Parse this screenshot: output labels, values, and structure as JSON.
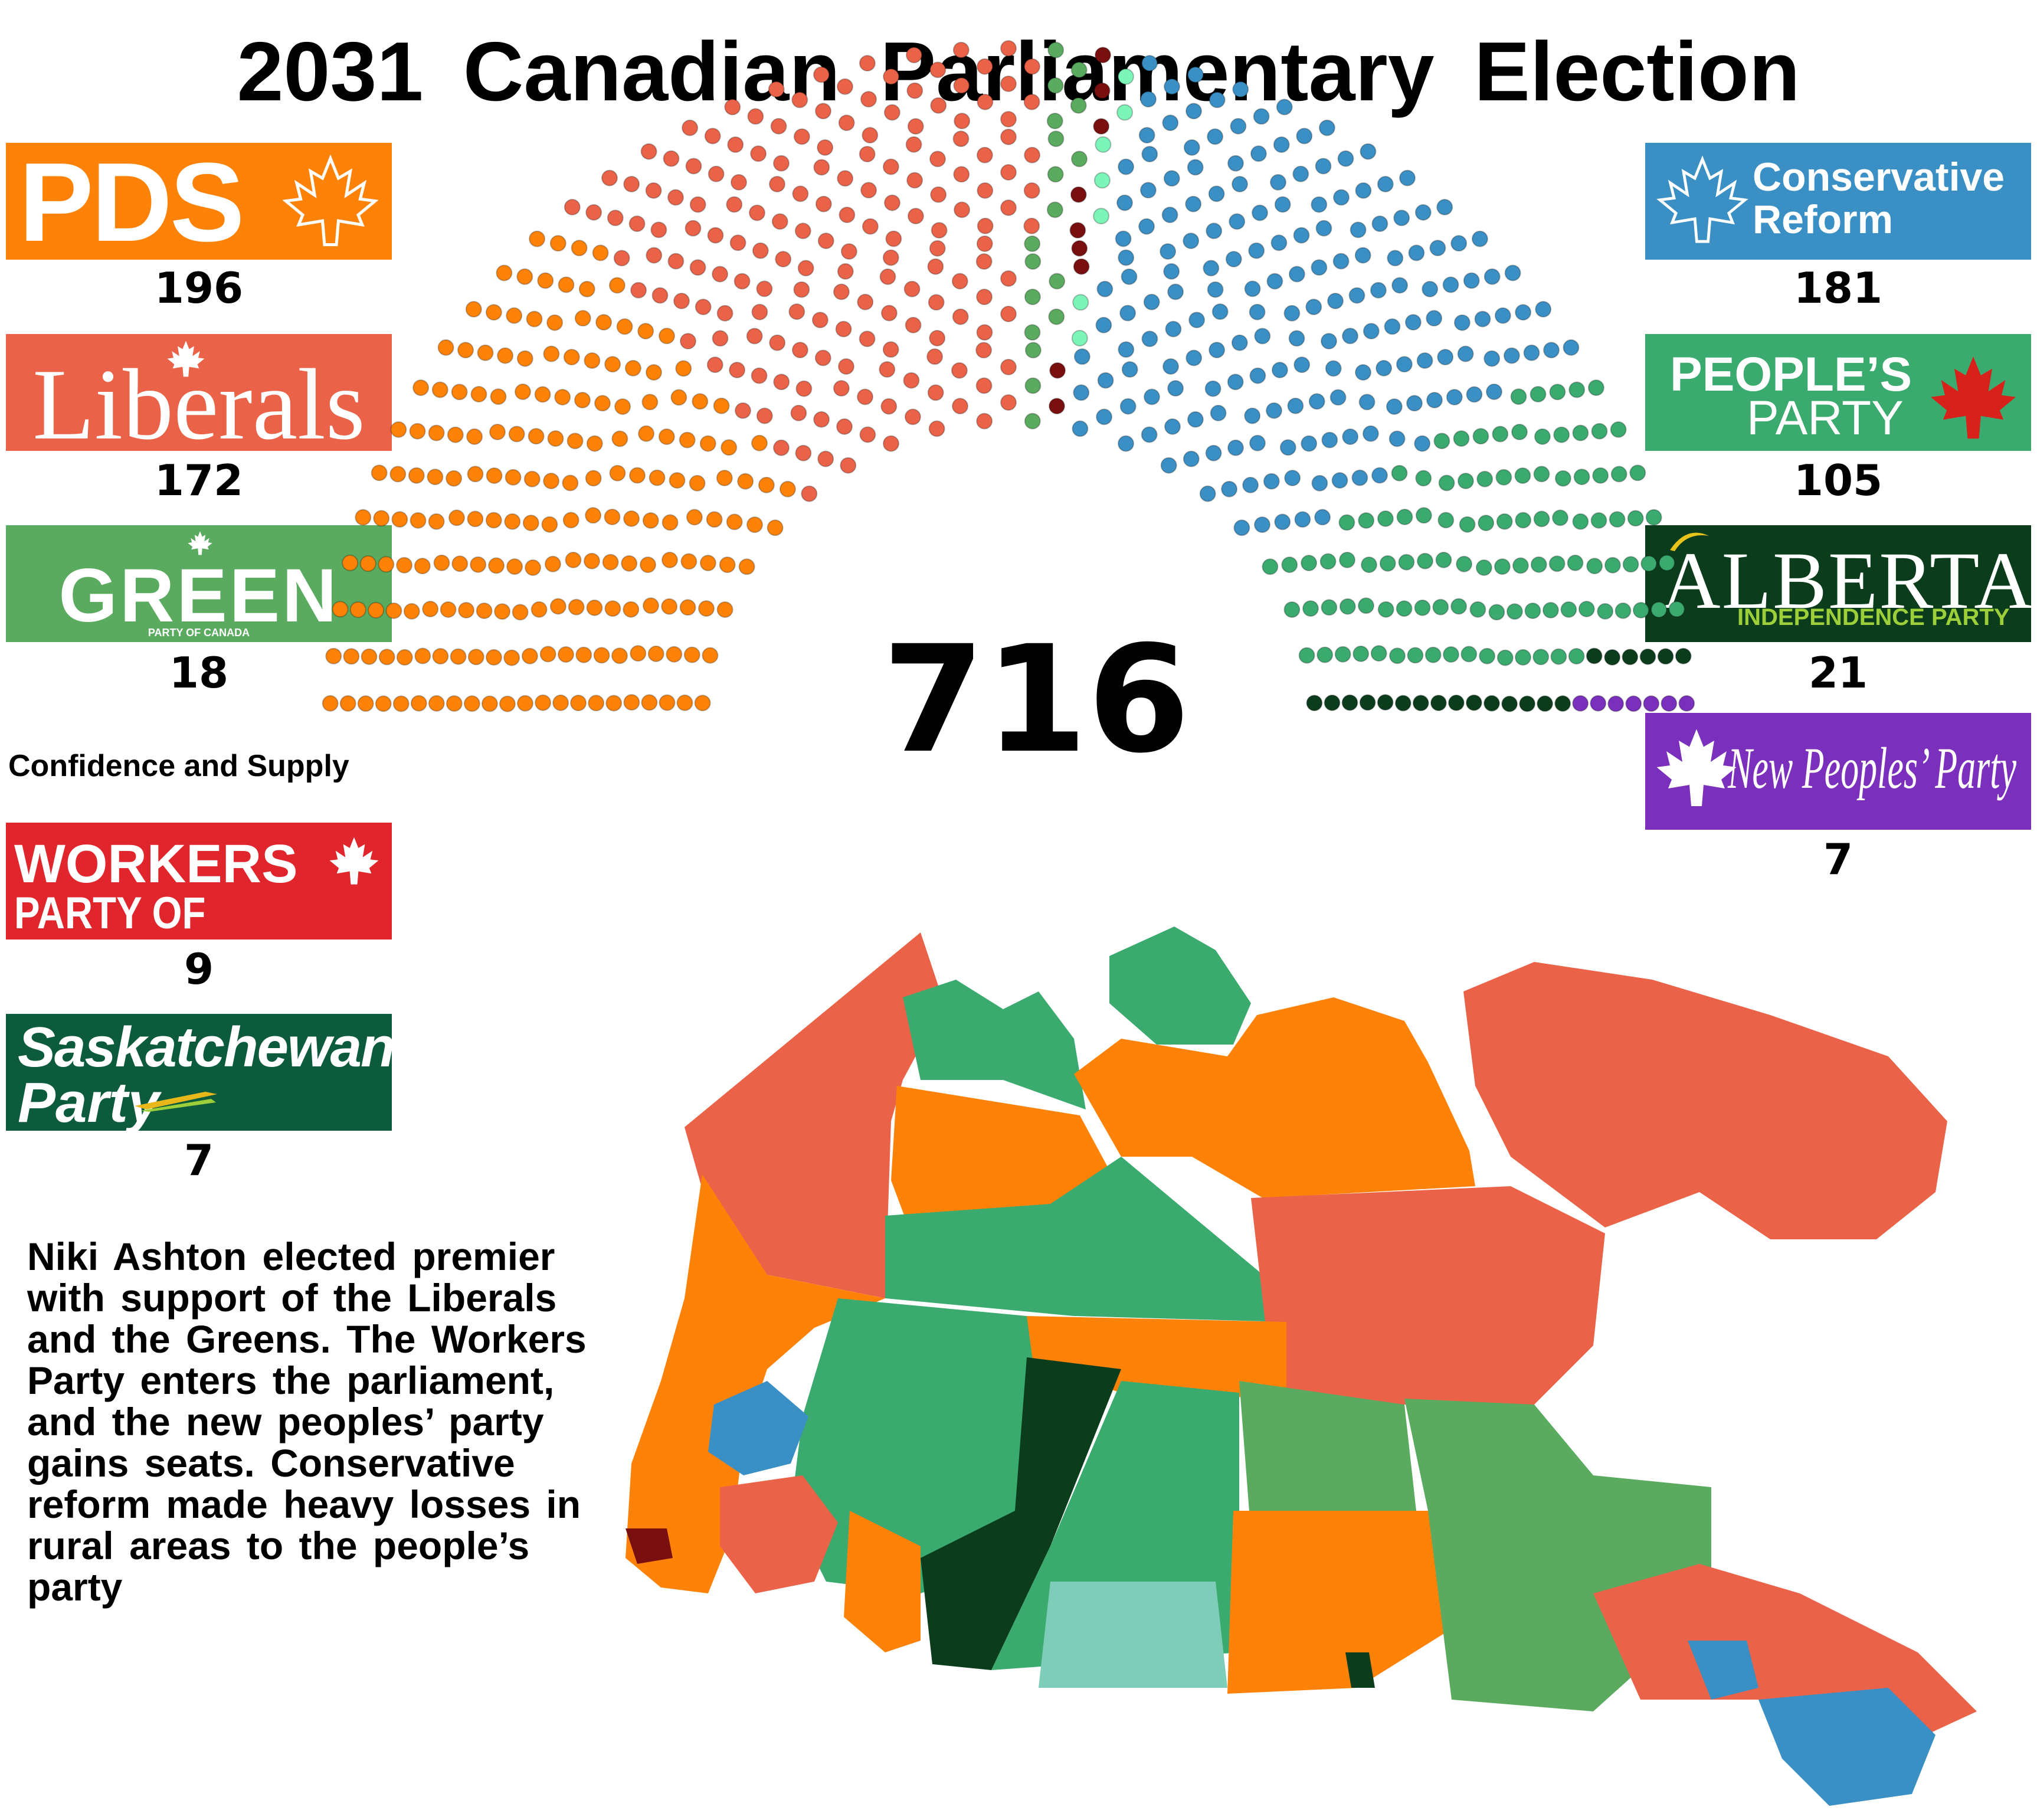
{
  "title": "2031 Canadian Parliamentary Election",
  "total_seats": "716",
  "confidence_label": "Confidence and Supply",
  "note": "Niki Ashton elected premier with support of the Liberals and the Greens. The Workers Party enters the parliament, and the new peoples’ party gains seats. Conservative reform made heavy losses in rural areas to the people’s party",
  "parties": {
    "pds": {
      "logo_text": "PDS",
      "seats": 196,
      "color": "#fe8208"
    },
    "liberals": {
      "logo_text": "Liberals",
      "seats": 172,
      "color": "#ea6349"
    },
    "green": {
      "logo_text": "GREEN",
      "logo_subtext": "PARTY OF CANADA",
      "seats": 18,
      "color": "#5aaa5f"
    },
    "workers": {
      "logo_text_1": "WORKERS",
      "logo_text_2": "PARTY OF CANADA",
      "seats": 9,
      "color": "#e0262c",
      "seat_color": "#7a0f10"
    },
    "saskatchewan": {
      "logo_text_1": "Saskatchewan",
      "logo_text_2": "Party",
      "seats": 7,
      "color": "#0c5b3c",
      "seat_color": "#7cf5b8"
    },
    "conservative_reform": {
      "logo_text_1": "Conservative",
      "logo_text_2": "Reform",
      "seats": 181,
      "color": "#3a8fc4"
    },
    "peoples_party": {
      "logo_text_1": "PEOPLE’S",
      "logo_text_2": "PARTY",
      "seats": 105,
      "color": "#3aaa6f"
    },
    "alberta": {
      "logo_text_1": "ALBERTA",
      "logo_text_2": "INDEPENDENCE PARTY",
      "seats": 21,
      "color": "#0b3d1c"
    },
    "new_peoples": {
      "logo_text": "New Peoples’ Party",
      "seats": 7,
      "color": "#7b2fbd"
    }
  },
  "seat_order": [
    "pds",
    "liberals",
    "green",
    "workers",
    "saskatchewan",
    "conservative_reform",
    "peoples_party",
    "alberta",
    "new_peoples"
  ],
  "map_colors": {
    "pds": "#fe8208",
    "liberals": "#ea6349",
    "green": "#5aaa5f",
    "peoples_party": "#3aaa6f",
    "conservative_reform": "#3a8fc4",
    "alberta": "#0b3d1c",
    "saskatchewan_light": "#7dcdb8",
    "workers": "#7a0f10"
  }
}
